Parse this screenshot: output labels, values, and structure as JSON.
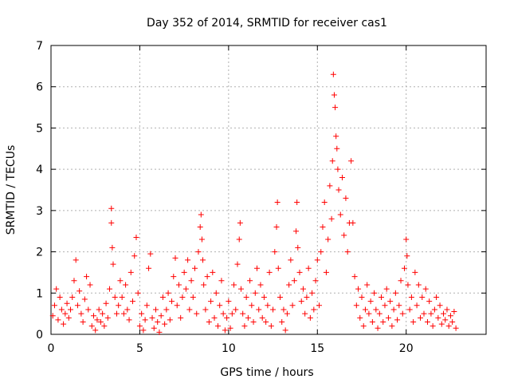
{
  "chart_data": {
    "type": "scatter",
    "title": "Day 352 of 2014, SRMTID for receiver cas1",
    "xlabel": "GPS time / hours",
    "ylabel": "SRMTID / TECUs",
    "xlim": [
      0,
      24.5
    ],
    "ylim": [
      0,
      7
    ],
    "xticks": [
      0,
      5,
      10,
      15,
      20
    ],
    "yticks": [
      0,
      1,
      2,
      3,
      4,
      5,
      6,
      7
    ],
    "grid": true,
    "marker": "+",
    "color": "#ff0000",
    "series": [
      {
        "name": "SRMTID",
        "points": [
          [
            0.1,
            0.45
          ],
          [
            0.2,
            0.7
          ],
          [
            0.3,
            1.1
          ],
          [
            0.4,
            0.35
          ],
          [
            0.5,
            0.9
          ],
          [
            0.6,
            0.6
          ],
          [
            0.7,
            0.25
          ],
          [
            0.8,
            0.5
          ],
          [
            0.9,
            0.75
          ],
          [
            1.0,
            0.4
          ],
          [
            1.1,
            0.6
          ],
          [
            1.2,
            0.9
          ],
          [
            1.3,
            1.3
          ],
          [
            1.4,
            1.8
          ],
          [
            1.5,
            0.7
          ],
          [
            1.6,
            1.05
          ],
          [
            1.7,
            0.5
          ],
          [
            1.8,
            0.3
          ],
          [
            1.9,
            0.85
          ],
          [
            2.0,
            1.4
          ],
          [
            2.1,
            0.6
          ],
          [
            2.2,
            1.2
          ],
          [
            2.3,
            0.2
          ],
          [
            2.4,
            0.45
          ],
          [
            2.5,
            0.1
          ],
          [
            2.6,
            0.35
          ],
          [
            2.7,
            0.6
          ],
          [
            2.8,
            0.3
          ],
          [
            2.9,
            0.5
          ],
          [
            3.0,
            0.2
          ],
          [
            3.1,
            0.75
          ],
          [
            3.2,
            0.4
          ],
          [
            3.3,
            1.1
          ],
          [
            3.4,
            3.05
          ],
          [
            3.4,
            2.7
          ],
          [
            3.45,
            2.1
          ],
          [
            3.5,
            1.7
          ],
          [
            3.6,
            0.9
          ],
          [
            3.7,
            0.5
          ],
          [
            3.8,
            0.7
          ],
          [
            3.9,
            1.3
          ],
          [
            4.0,
            0.9
          ],
          [
            4.1,
            0.5
          ],
          [
            4.2,
            1.2
          ],
          [
            4.3,
            0.6
          ],
          [
            4.4,
            0.35
          ],
          [
            4.5,
            1.5
          ],
          [
            4.6,
            0.8
          ],
          [
            4.7,
            1.9
          ],
          [
            4.8,
            2.35
          ],
          [
            4.9,
            1.0
          ],
          [
            5.0,
            0.2
          ],
          [
            5.1,
            0.5
          ],
          [
            5.2,
            0.1
          ],
          [
            5.3,
            0.35
          ],
          [
            5.4,
            0.7
          ],
          [
            5.5,
            1.6
          ],
          [
            5.6,
            1.95
          ],
          [
            5.7,
            0.4
          ],
          [
            5.8,
            0.15
          ],
          [
            5.9,
            0.6
          ],
          [
            6.0,
            0.3
          ],
          [
            6.1,
            0.05
          ],
          [
            6.2,
            0.45
          ],
          [
            6.3,
            0.9
          ],
          [
            6.4,
            0.25
          ],
          [
            6.5,
            0.6
          ],
          [
            6.6,
            1.0
          ],
          [
            6.7,
            0.35
          ],
          [
            6.8,
            0.8
          ],
          [
            6.9,
            1.4
          ],
          [
            7.0,
            1.85
          ],
          [
            7.1,
            0.7
          ],
          [
            7.2,
            1.2
          ],
          [
            7.3,
            0.4
          ],
          [
            7.4,
            0.9
          ],
          [
            7.5,
            1.5
          ],
          [
            7.6,
            1.1
          ],
          [
            7.7,
            1.8
          ],
          [
            7.8,
            0.6
          ],
          [
            7.9,
            1.3
          ],
          [
            8.0,
            0.9
          ],
          [
            8.1,
            1.6
          ],
          [
            8.2,
            0.5
          ],
          [
            8.3,
            2.0
          ],
          [
            8.4,
            2.6
          ],
          [
            8.45,
            2.9
          ],
          [
            8.5,
            2.3
          ],
          [
            8.55,
            1.8
          ],
          [
            8.6,
            1.2
          ],
          [
            8.7,
            0.6
          ],
          [
            8.8,
            1.4
          ],
          [
            8.9,
            0.3
          ],
          [
            9.0,
            0.8
          ],
          [
            9.1,
            1.5
          ],
          [
            9.2,
            0.4
          ],
          [
            9.3,
            1.0
          ],
          [
            9.4,
            0.2
          ],
          [
            9.5,
            0.7
          ],
          [
            9.6,
            1.3
          ],
          [
            9.7,
            0.5
          ],
          [
            9.8,
            0.1
          ],
          [
            9.9,
            0.4
          ],
          [
            10.0,
            0.8
          ],
          [
            10.1,
            0.15
          ],
          [
            10.2,
            0.5
          ],
          [
            10.3,
            1.2
          ],
          [
            10.4,
            0.6
          ],
          [
            10.5,
            1.7
          ],
          [
            10.6,
            2.3
          ],
          [
            10.65,
            2.7
          ],
          [
            10.7,
            1.1
          ],
          [
            10.8,
            0.5
          ],
          [
            10.9,
            0.2
          ],
          [
            11.0,
            0.9
          ],
          [
            11.1,
            0.4
          ],
          [
            11.2,
            1.3
          ],
          [
            11.3,
            0.7
          ],
          [
            11.4,
            0.3
          ],
          [
            11.5,
            1.0
          ],
          [
            11.6,
            1.6
          ],
          [
            11.7,
            0.6
          ],
          [
            11.8,
            1.2
          ],
          [
            11.9,
            0.4
          ],
          [
            12.0,
            0.9
          ],
          [
            12.1,
            0.3
          ],
          [
            12.2,
            0.7
          ],
          [
            12.3,
            1.5
          ],
          [
            12.4,
            0.2
          ],
          [
            12.5,
            0.6
          ],
          [
            12.6,
            2.0
          ],
          [
            12.7,
            2.6
          ],
          [
            12.75,
            3.2
          ],
          [
            12.8,
            1.6
          ],
          [
            12.9,
            0.9
          ],
          [
            13.0,
            0.3
          ],
          [
            13.1,
            0.6
          ],
          [
            13.2,
            0.1
          ],
          [
            13.3,
            0.5
          ],
          [
            13.4,
            1.2
          ],
          [
            13.5,
            1.8
          ],
          [
            13.6,
            0.7
          ],
          [
            13.7,
            1.3
          ],
          [
            13.8,
            2.5
          ],
          [
            13.85,
            3.2
          ],
          [
            13.9,
            2.1
          ],
          [
            14.0,
            1.5
          ],
          [
            14.1,
            0.8
          ],
          [
            14.2,
            1.1
          ],
          [
            14.3,
            0.5
          ],
          [
            14.4,
            0.9
          ],
          [
            14.5,
            1.6
          ],
          [
            14.6,
            0.4
          ],
          [
            14.7,
            1.0
          ],
          [
            14.8,
            0.6
          ],
          [
            14.9,
            1.3
          ],
          [
            15.0,
            1.8
          ],
          [
            15.1,
            0.7
          ],
          [
            15.2,
            2.0
          ],
          [
            15.3,
            2.6
          ],
          [
            15.4,
            3.2
          ],
          [
            15.5,
            1.5
          ],
          [
            15.6,
            2.3
          ],
          [
            15.7,
            3.6
          ],
          [
            15.8,
            2.8
          ],
          [
            15.85,
            4.2
          ],
          [
            15.9,
            6.3
          ],
          [
            15.95,
            5.8
          ],
          [
            16.0,
            5.5
          ],
          [
            16.05,
            4.8
          ],
          [
            16.1,
            4.5
          ],
          [
            16.15,
            4.0
          ],
          [
            16.2,
            3.5
          ],
          [
            16.3,
            2.9
          ],
          [
            16.4,
            3.8
          ],
          [
            16.5,
            2.4
          ],
          [
            16.6,
            3.3
          ],
          [
            16.7,
            2.0
          ],
          [
            16.8,
            2.7
          ],
          [
            16.9,
            4.2
          ],
          [
            17.0,
            2.7
          ],
          [
            17.1,
            1.4
          ],
          [
            17.2,
            0.7
          ],
          [
            17.3,
            1.1
          ],
          [
            17.4,
            0.4
          ],
          [
            17.5,
            0.9
          ],
          [
            17.6,
            0.2
          ],
          [
            17.7,
            0.6
          ],
          [
            17.8,
            1.2
          ],
          [
            17.9,
            0.5
          ],
          [
            18.0,
            0.8
          ],
          [
            18.1,
            0.3
          ],
          [
            18.2,
            1.0
          ],
          [
            18.3,
            0.6
          ],
          [
            18.4,
            0.15
          ],
          [
            18.5,
            0.5
          ],
          [
            18.6,
            0.9
          ],
          [
            18.7,
            0.3
          ],
          [
            18.8,
            0.7
          ],
          [
            18.9,
            1.1
          ],
          [
            19.0,
            0.4
          ],
          [
            19.1,
            0.8
          ],
          [
            19.2,
            0.2
          ],
          [
            19.3,
            0.6
          ],
          [
            19.4,
            1.0
          ],
          [
            19.5,
            0.35
          ],
          [
            19.6,
            0.7
          ],
          [
            19.7,
            1.3
          ],
          [
            19.8,
            0.5
          ],
          [
            19.9,
            1.6
          ],
          [
            20.0,
            2.3
          ],
          [
            20.05,
            1.9
          ],
          [
            20.1,
            1.2
          ],
          [
            20.2,
            0.6
          ],
          [
            20.3,
            0.9
          ],
          [
            20.4,
            0.3
          ],
          [
            20.5,
            1.5
          ],
          [
            20.6,
            0.7
          ],
          [
            20.7,
            1.2
          ],
          [
            20.8,
            0.4
          ],
          [
            20.9,
            0.9
          ],
          [
            21.0,
            0.5
          ],
          [
            21.1,
            1.1
          ],
          [
            21.2,
            0.3
          ],
          [
            21.3,
            0.8
          ],
          [
            21.4,
            0.5
          ],
          [
            21.5,
            0.2
          ],
          [
            21.6,
            0.6
          ],
          [
            21.7,
            0.9
          ],
          [
            21.8,
            0.4
          ],
          [
            21.9,
            0.7
          ],
          [
            22.0,
            0.25
          ],
          [
            22.1,
            0.5
          ],
          [
            22.2,
            0.35
          ],
          [
            22.3,
            0.6
          ],
          [
            22.4,
            0.2
          ],
          [
            22.5,
            0.45
          ],
          [
            22.6,
            0.3
          ],
          [
            22.7,
            0.55
          ],
          [
            22.8,
            0.15
          ]
        ]
      }
    ]
  }
}
